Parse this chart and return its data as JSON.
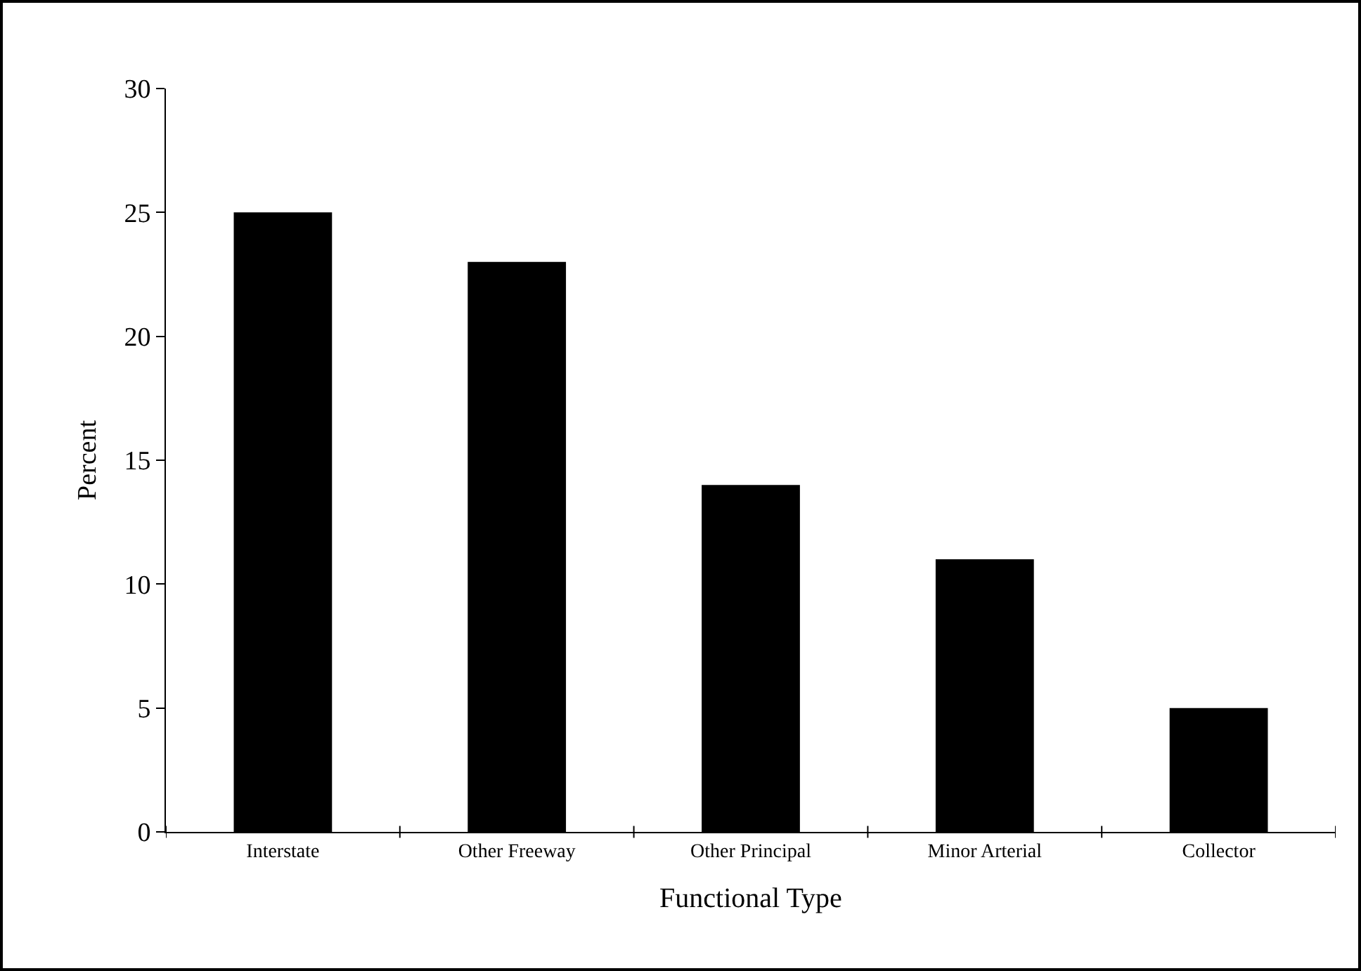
{
  "chart_data": {
    "type": "bar",
    "xlabel": "Functional Type",
    "ylabel": "Percent",
    "categories": [
      "Interstate",
      "Other Freeway",
      "Other Principal",
      "Minor Arterial",
      "Collector"
    ],
    "values": [
      25,
      23,
      14,
      11,
      5
    ],
    "color": "#000000",
    "ylim": [
      0,
      30
    ],
    "yticks": [
      0,
      5,
      10,
      15,
      20,
      25,
      30
    ],
    "grid": false,
    "legend": false
  }
}
